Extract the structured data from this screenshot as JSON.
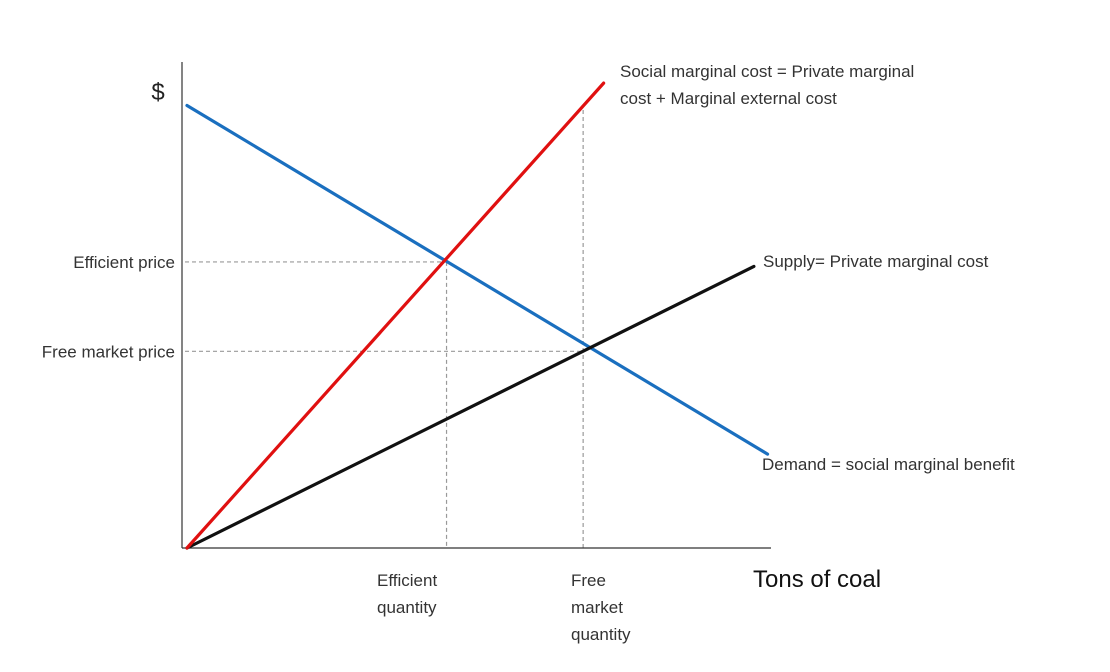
{
  "chart_data": {
    "type": "line",
    "ylabel": "$",
    "xlabel": "Tons of coal",
    "x_range": [
      0,
      8
    ],
    "y_range": [
      0,
      10
    ],
    "series": [
      {
        "name": "Demand = social marginal benefit",
        "color": "#1a6fbf",
        "points": [
          [
            0,
            9.9
          ],
          [
            8.5,
            2.1
          ]
        ]
      },
      {
        "name": "Supply= Private marginal cost",
        "color": "#111111",
        "points": [
          [
            0,
            0
          ],
          [
            8.3,
            6.3
          ]
        ]
      },
      {
        "name_lines": [
          "Social marginal cost = Private marginal",
          "cost + Marginal external cost"
        ],
        "color": "#e01010",
        "points": [
          [
            0,
            0
          ],
          [
            6.1,
            10.4
          ]
        ]
      }
    ],
    "reference_lines": [
      {
        "axis": "y",
        "at": 6.4,
        "label": "Efficient price"
      },
      {
        "axis": "y",
        "at": 4.4,
        "label": "Free market price"
      },
      {
        "axis": "x",
        "at": 3.8,
        "label_lines": [
          "Efficient",
          "quantity"
        ]
      },
      {
        "axis": "x",
        "at": 5.8,
        "label_lines": [
          "Free",
          "market",
          "quantity"
        ]
      }
    ]
  }
}
